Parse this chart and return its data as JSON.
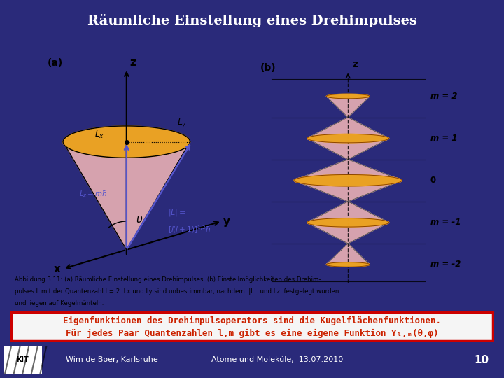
{
  "title": "Räumliche Einstellung eines Drehimpulses",
  "title_color": "#ffffff",
  "title_bg": "#0d0d3a",
  "main_bg": "#2a2a7a",
  "content_bg": "#ffffff",
  "red_line_color": "#cc0000",
  "cone_orange": "#f5a820",
  "cone_pink": "#f5b8b8",
  "cone_outline": "#8b4400",
  "highlight_text_line1": "Eigenfunktionen des Drehimpulsoperators sind die Kugelflächenfunktionen.",
  "highlight_text_line2": "Für jedes Paar Quantenzahlen l,m gibt es eine eigene Funktion Y",
  "highlight_text_line2b": "l,m",
  "highlight_text_line2c": "(θ,φ)",
  "highlight_text_color": "#cc2200",
  "highlight_bg": "#f5f5f5",
  "highlight_border": "#cc0000",
  "footer_left": "Wim de Boer, Karlsruhe",
  "footer_mid": "Atome und Moleküle,  13.07.2010",
  "footer_num": "10",
  "footer_bg": "#1a1a55",
  "caption": "Abbildung 3.11: (a) Räumliche Einstellung eines Drehimpulses. (b) Einstellmöglichkeiten des Drehim-\npulses L mit der Quantenzahl l = 2. Lx und Ly sind unbestimmbar, nachdem  |L|  und Lz  festgelegt wurden\nund liegen auf Kegelmänteln.",
  "m_z_positions": [
    2.5,
    1.25,
    0.0,
    -1.25,
    -2.5
  ],
  "m_radii": [
    0.38,
    0.72,
    0.95,
    0.72,
    0.38
  ],
  "m_labels": [
    "m = 2",
    "m = 1",
    "0",
    "m = -1",
    "m = -2"
  ]
}
